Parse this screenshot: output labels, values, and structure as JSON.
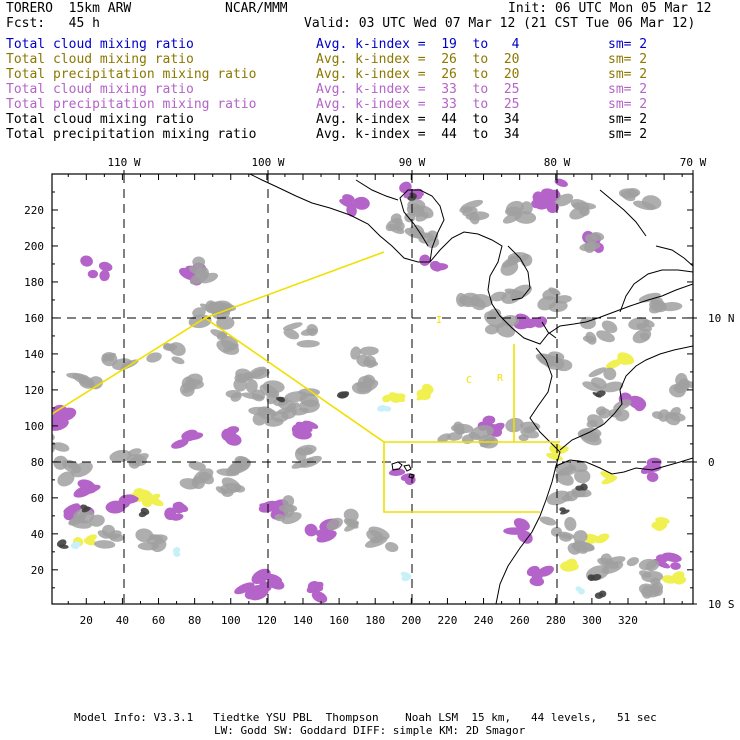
{
  "header": {
    "model": "TORERO  15km ARW",
    "org": "NCAR/MMM",
    "init": "Init: 06 UTC Mon 05 Mar 12",
    "fcst": "Fcst:   45 h",
    "valid": "Valid: 03 UTC Wed 07 Mar 12 (21 CST Tue 06 Mar 12)"
  },
  "fields": [
    {
      "name": "Total cloud mixing ratio",
      "index": "Avg. k-index =  19  to   4",
      "sm": "sm= 2",
      "color": "#0000c8"
    },
    {
      "name": "Total cloud mixing ratio",
      "index": "Avg. k-index =  26  to  20",
      "sm": "sm= 2",
      "color": "#8c7800"
    },
    {
      "name": "Total precipitation mixing ratio",
      "index": "Avg. k-index =  26  to  20",
      "sm": "sm= 2",
      "color": "#8c7800"
    },
    {
      "name": "Total cloud mixing ratio",
      "index": "Avg. k-index =  33  to  25",
      "sm": "sm= 2",
      "color": "#b464c8"
    },
    {
      "name": "Total precipitation mixing ratio",
      "index": "Avg. k-index =  33  to  25",
      "sm": "sm= 2",
      "color": "#b464c8"
    },
    {
      "name": "Total cloud mixing ratio",
      "index": "Avg. k-index =  44  to  34",
      "sm": "sm= 2",
      "color": "#000000"
    },
    {
      "name": "Total precipitation mixing ratio",
      "index": "Avg. k-index =  44  to  34",
      "sm": "sm= 2",
      "color": "#000000"
    }
  ],
  "axes": {
    "x_ticks": [
      "20",
      "40",
      "60",
      "80",
      "100",
      "120",
      "140",
      "160",
      "180",
      "200",
      "220",
      "240",
      "260",
      "280",
      "300",
      "320"
    ],
    "y_ticks": [
      "20",
      "40",
      "60",
      "80",
      "100",
      "120",
      "140",
      "160",
      "180",
      "200",
      "220"
    ],
    "lon_labels": [
      "110 W",
      "100 W",
      "90 W",
      "80 W",
      "70 W"
    ],
    "lat_labels": [
      "10 N",
      "0",
      "10 S"
    ]
  },
  "region_labels": [
    "I",
    "C",
    "R"
  ],
  "footer": {
    "line1": "Model Info: V3.3.1   Tiedtke YSU PBL  Thompson    Noah LSM  15 km,   44 levels,   51 sec",
    "line2": "LW: Godd SW: Goddard DIFF: simple KM: 2D Smagor"
  },
  "colors": {
    "gray_cloud": "#a0a0a0",
    "purple_cloud": "#b464c8",
    "yellow_cloud": "#f0f050",
    "cyan_cloud": "#c8f0f8",
    "domain_line": "#f0e000",
    "coast": "#000000"
  }
}
